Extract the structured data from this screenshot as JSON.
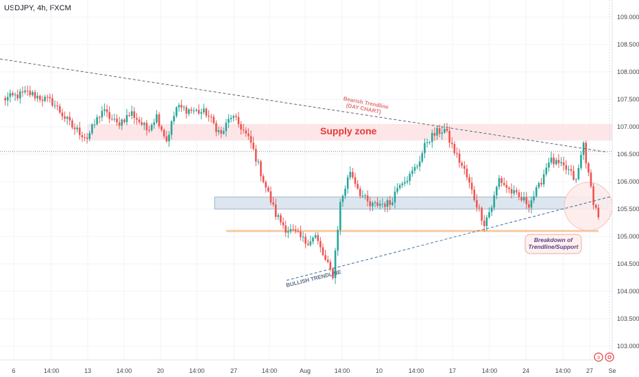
{
  "header": {
    "symbol": "USDJPY, 4h, FXCM"
  },
  "footer": {
    "badge_count": "3"
  },
  "chart_data": {
    "type": "candlestick",
    "xlabel": "",
    "ylabel": "",
    "ylim": [
      102.6,
      109.3
    ],
    "x_ticks": [
      "6",
      "14:00",
      "13",
      "14:00",
      "20",
      "14:00",
      "27",
      "14:00",
      "Aug",
      "14:00",
      "10",
      "14:00",
      "17",
      "14:00",
      "24",
      "14:00",
      "27",
      "Se"
    ],
    "y_ticks": [
      "103.000",
      "103.500",
      "104.000",
      "104.500",
      "105.000",
      "105.500",
      "106.000",
      "106.500",
      "107.000",
      "107.500",
      "108.000",
      "108.500",
      "109.000"
    ],
    "anchors": [
      [
        0,
        107.5
      ],
      [
        10,
        107.62
      ],
      [
        20,
        107.45
      ],
      [
        28,
        107.0
      ],
      [
        34,
        106.8
      ],
      [
        40,
        107.3
      ],
      [
        46,
        107.05
      ],
      [
        52,
        107.25
      ],
      [
        58,
        106.95
      ],
      [
        62,
        107.2
      ],
      [
        66,
        106.75
      ],
      [
        70,
        107.35
      ],
      [
        76,
        107.3
      ],
      [
        82,
        107.25
      ],
      [
        88,
        106.85
      ],
      [
        92,
        107.2
      ],
      [
        96,
        107.0
      ],
      [
        100,
        106.7
      ],
      [
        103,
        106.3
      ],
      [
        106,
        105.9
      ],
      [
        110,
        105.4
      ],
      [
        114,
        105.15
      ],
      [
        118,
        105.05
      ],
      [
        122,
        104.9
      ],
      [
        126,
        105.0
      ],
      [
        130,
        104.55
      ],
      [
        133,
        104.3
      ],
      [
        136,
        105.6
      ],
      [
        140,
        106.2
      ],
      [
        144,
        105.8
      ],
      [
        148,
        105.55
      ],
      [
        152,
        105.6
      ],
      [
        156,
        105.6
      ],
      [
        160,
        106.0
      ],
      [
        164,
        106.1
      ],
      [
        167,
        106.3
      ],
      [
        171,
        106.75
      ],
      [
        175,
        106.9
      ],
      [
        178,
        106.95
      ],
      [
        182,
        106.55
      ],
      [
        186,
        106.2
      ],
      [
        190,
        105.7
      ],
      [
        194,
        105.25
      ],
      [
        197,
        105.55
      ],
      [
        200,
        106.05
      ],
      [
        204,
        105.85
      ],
      [
        208,
        105.7
      ],
      [
        212,
        105.6
      ],
      [
        216,
        105.9
      ],
      [
        220,
        106.4
      ],
      [
        224,
        106.3
      ],
      [
        228,
        106.2
      ],
      [
        231,
        106.0
      ],
      [
        234,
        106.7
      ],
      [
        236,
        106.1
      ],
      [
        238,
        105.65
      ],
      [
        240,
        105.35
      ]
    ],
    "annotations": [
      {
        "text": "Supply zone",
        "low": 106.75,
        "high": 107.05
      },
      {
        "text": "Bearish Trendline\n(DAY CHART)"
      },
      {
        "text": "BULLISH TRENDLINE"
      },
      {
        "text": "Breakdown of\nTrendline/Support"
      }
    ],
    "zones": [
      {
        "name": "support-zone",
        "low": 105.5,
        "high": 105.72
      },
      {
        "name": "horizontal-support",
        "value": 105.1
      }
    ],
    "reference_line": 106.55,
    "grid": true,
    "legend": "none"
  }
}
